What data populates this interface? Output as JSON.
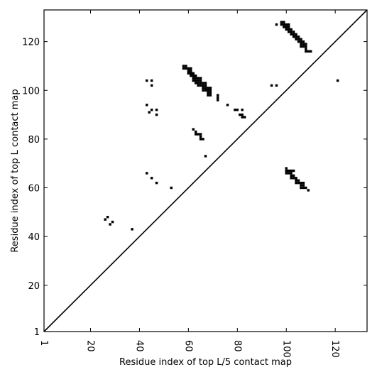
{
  "chart_data": {
    "type": "scatter",
    "title": "",
    "xlabel": "Residue index of top L/5 contact map",
    "ylabel": "Residue index of top L contact map",
    "xlim": [
      1,
      133
    ],
    "ylim": [
      1,
      133
    ],
    "x_ticks": [
      1,
      20,
      40,
      60,
      80,
      100,
      120
    ],
    "y_ticks": [
      1,
      20,
      40,
      60,
      80,
      100,
      120
    ],
    "x_tick_labels": [
      "1",
      "20",
      "40",
      "60",
      "80",
      "100",
      "120"
    ],
    "y_tick_labels": [
      "1",
      "20",
      "40",
      "60",
      "80",
      "100",
      "120"
    ],
    "grid": false,
    "diagonal_line": true,
    "marker_color": "#000000",
    "series": [
      {
        "marker": "square",
        "points": [
          [
            26,
            47
          ],
          [
            27,
            48
          ],
          [
            28,
            45
          ],
          [
            29,
            46
          ],
          [
            37,
            43
          ],
          [
            43,
            66
          ],
          [
            45,
            64
          ],
          [
            47,
            62
          ],
          [
            53,
            60
          ],
          [
            43,
            104
          ],
          [
            45,
            104
          ],
          [
            45,
            102
          ],
          [
            43,
            94
          ],
          [
            44,
            91
          ],
          [
            45,
            92
          ],
          [
            47,
            92
          ],
          [
            47,
            90
          ],
          [
            58,
            110
          ],
          [
            58,
            109
          ],
          [
            59,
            110
          ],
          [
            59,
            109
          ],
          [
            60,
            109
          ],
          [
            60,
            108
          ],
          [
            60,
            107
          ],
          [
            61,
            109
          ],
          [
            61,
            108
          ],
          [
            61,
            107
          ],
          [
            61,
            106
          ],
          [
            62,
            107
          ],
          [
            62,
            106
          ],
          [
            62,
            105
          ],
          [
            62,
            104
          ],
          [
            63,
            106
          ],
          [
            63,
            105
          ],
          [
            63,
            104
          ],
          [
            63,
            103
          ],
          [
            64,
            105
          ],
          [
            64,
            104
          ],
          [
            64,
            103
          ],
          [
            64,
            102
          ],
          [
            65,
            105
          ],
          [
            65,
            104
          ],
          [
            65,
            103
          ],
          [
            65,
            102
          ],
          [
            66,
            103
          ],
          [
            66,
            102
          ],
          [
            66,
            101
          ],
          [
            66,
            100
          ],
          [
            67,
            103
          ],
          [
            67,
            102
          ],
          [
            67,
            101
          ],
          [
            67,
            100
          ],
          [
            68,
            101
          ],
          [
            68,
            100
          ],
          [
            68,
            99
          ],
          [
            68,
            98
          ],
          [
            69,
            101
          ],
          [
            69,
            100
          ],
          [
            69,
            99
          ],
          [
            69,
            98
          ],
          [
            72,
            98
          ],
          [
            72,
            97
          ],
          [
            72,
            96
          ],
          [
            76,
            94
          ],
          [
            62,
            84
          ],
          [
            63,
            83
          ],
          [
            63,
            82
          ],
          [
            64,
            82
          ],
          [
            65,
            82
          ],
          [
            65,
            81
          ],
          [
            65,
            80
          ],
          [
            66,
            80
          ],
          [
            67,
            73
          ],
          [
            79,
            92
          ],
          [
            80,
            92
          ],
          [
            81,
            90
          ],
          [
            82,
            92
          ],
          [
            82,
            90
          ],
          [
            82,
            89
          ],
          [
            83,
            89
          ],
          [
            96,
            127
          ],
          [
            98,
            128
          ],
          [
            98,
            127
          ],
          [
            99,
            128
          ],
          [
            99,
            127
          ],
          [
            99,
            126
          ],
          [
            100,
            127
          ],
          [
            100,
            126
          ],
          [
            100,
            125
          ],
          [
            101,
            127
          ],
          [
            101,
            126
          ],
          [
            101,
            125
          ],
          [
            101,
            124
          ],
          [
            102,
            125
          ],
          [
            102,
            124
          ],
          [
            102,
            123
          ],
          [
            103,
            124
          ],
          [
            103,
            123
          ],
          [
            103,
            122
          ],
          [
            104,
            123
          ],
          [
            104,
            122
          ],
          [
            104,
            121
          ],
          [
            105,
            122
          ],
          [
            105,
            121
          ],
          [
            105,
            120
          ],
          [
            106,
            121
          ],
          [
            106,
            120
          ],
          [
            106,
            119
          ],
          [
            106,
            118
          ],
          [
            107,
            120
          ],
          [
            107,
            119
          ],
          [
            107,
            118
          ],
          [
            108,
            119
          ],
          [
            108,
            118
          ],
          [
            108,
            117
          ],
          [
            108,
            116
          ],
          [
            109,
            116
          ],
          [
            110,
            116
          ],
          [
            94,
            102
          ],
          [
            96,
            102
          ],
          [
            121,
            104
          ],
          [
            100,
            68
          ],
          [
            100,
            67
          ],
          [
            100,
            66
          ],
          [
            101,
            67
          ],
          [
            101,
            66
          ],
          [
            102,
            67
          ],
          [
            102,
            66
          ],
          [
            102,
            65
          ],
          [
            102,
            64
          ],
          [
            103,
            67
          ],
          [
            103,
            65
          ],
          [
            103,
            64
          ],
          [
            104,
            64
          ],
          [
            104,
            63
          ],
          [
            104,
            62
          ],
          [
            105,
            63
          ],
          [
            105,
            62
          ],
          [
            106,
            62
          ],
          [
            106,
            61
          ],
          [
            106,
            60
          ],
          [
            107,
            62
          ],
          [
            107,
            61
          ],
          [
            107,
            60
          ],
          [
            108,
            60
          ],
          [
            109,
            59
          ]
        ]
      }
    ]
  }
}
